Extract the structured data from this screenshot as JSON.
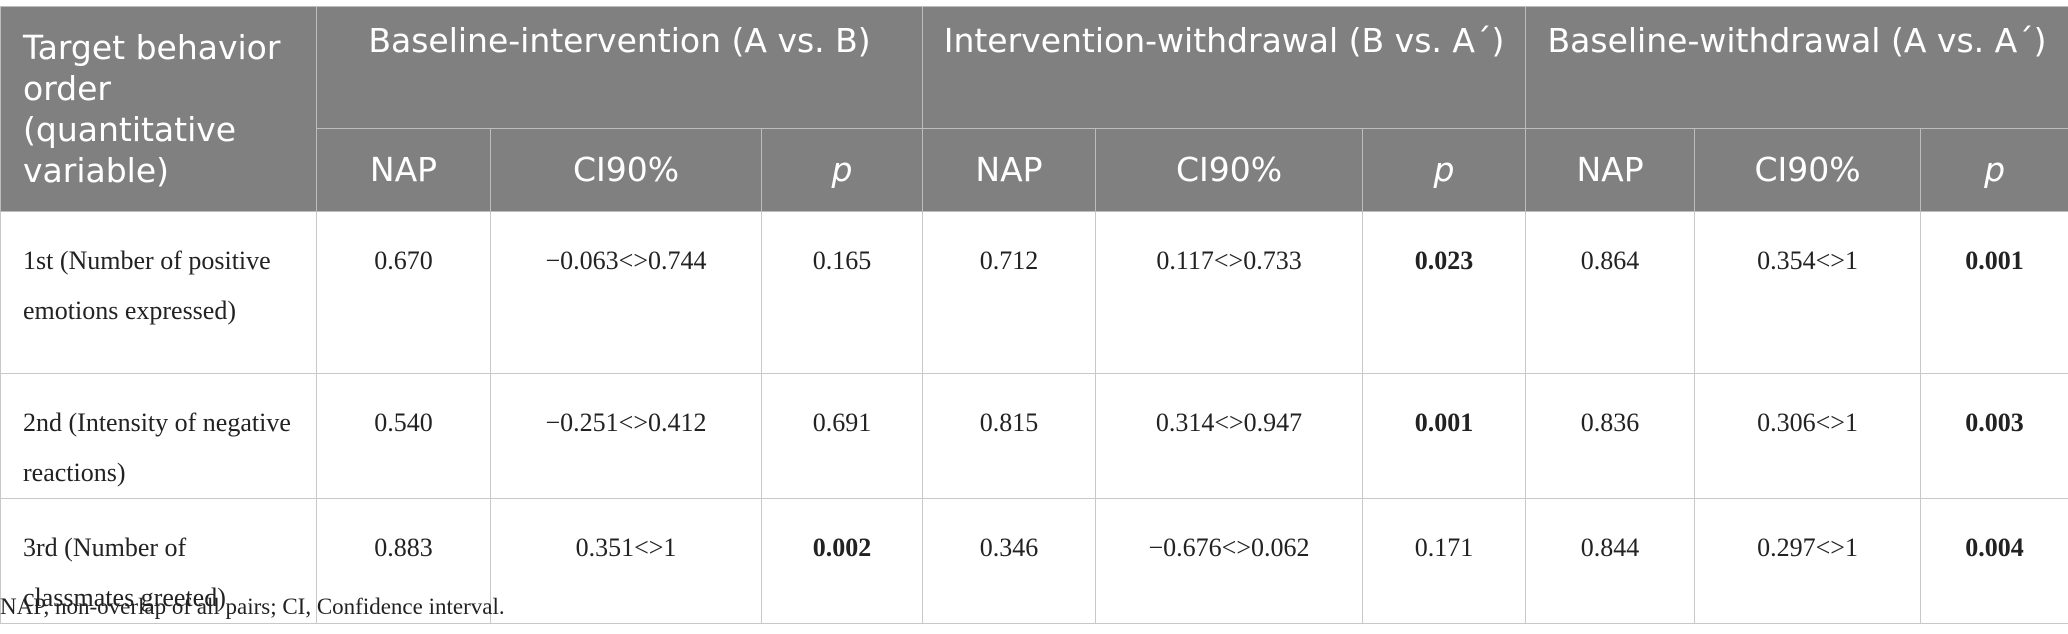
{
  "header": {
    "first_col": "Target behavior order (quantitative variable)",
    "groups": [
      "Baseline-intervention (A vs. B)",
      "Intervention-withdrawal (B vs. A´)",
      "Baseline-withdrawal (A vs. A´)"
    ],
    "subcols": [
      "NAP",
      "CI90%",
      "p"
    ]
  },
  "rows": [
    {
      "label": "1st (Number of positive emotions expressed)",
      "ab": {
        "nap": "0.670",
        "ci": "−0.063<>0.744",
        "p": "0.165"
      },
      "ba": {
        "nap": "0.712",
        "ci": "0.117<>0.733",
        "p": "0.023"
      },
      "aa": {
        "nap": "0.864",
        "ci": "0.354<>1",
        "p": "0.001"
      }
    },
    {
      "label": "2nd (Intensity of negative reactions)",
      "ab": {
        "nap": "0.540",
        "ci": "−0.251<>0.412",
        "p": "0.691"
      },
      "ba": {
        "nap": "0.815",
        "ci": "0.314<>0.947",
        "p": "0.001"
      },
      "aa": {
        "nap": "0.836",
        "ci": "0.306<>1",
        "p": "0.003"
      }
    },
    {
      "label": "3rd (Number of classmates greeted)",
      "ab": {
        "nap": "0.883",
        "ci": "0.351<>1",
        "p": "0.002"
      },
      "ba": {
        "nap": "0.346",
        "ci": "−0.676<>0.062",
        "p": "0.171"
      },
      "aa": {
        "nap": "0.844",
        "ci": "0.297<>1",
        "p": "0.004"
      }
    }
  ],
  "footnote": "NAP, non-overlap of all pairs; CI, Confidence interval."
}
